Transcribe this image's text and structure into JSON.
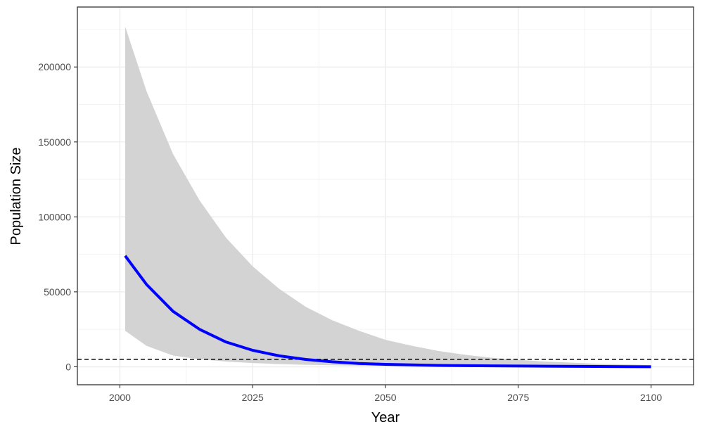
{
  "chart_data": {
    "type": "line",
    "title": "",
    "xlabel": "Year",
    "ylabel": "Population Size",
    "xlim": [
      1992,
      2108
    ],
    "ylim": [
      -12000,
      240000
    ],
    "x_ticks": [
      2000,
      2025,
      2050,
      2075,
      2100
    ],
    "x_tick_labels": [
      "2000",
      "2025",
      "2050",
      "2075",
      "2100"
    ],
    "y_ticks": [
      0,
      50000,
      100000,
      150000,
      200000
    ],
    "y_tick_labels": [
      "0",
      "50000",
      "100000",
      "150000",
      "200000"
    ],
    "grid": true,
    "series": [
      {
        "kind": "mean-line",
        "color": "#0000ff",
        "x": [
          2001,
          2005,
          2010,
          2015,
          2020,
          2025,
          2030,
          2035,
          2040,
          2045,
          2050,
          2060,
          2070,
          2080,
          2090,
          2100
        ],
        "y": [
          74000,
          55000,
          37000,
          25000,
          16500,
          11000,
          7300,
          4900,
          3300,
          2200,
          1600,
          900,
          600,
          400,
          200,
          0
        ]
      }
    ],
    "band": {
      "kind": "confidence-interval",
      "color": "#d3d3d3",
      "x": [
        2001,
        2005,
        2010,
        2015,
        2020,
        2025,
        2030,
        2035,
        2040,
        2045,
        2050,
        2055,
        2060,
        2065,
        2070,
        2075,
        2080,
        2090,
        2100
      ],
      "upper": [
        227000,
        184000,
        142000,
        111000,
        86000,
        67000,
        52000,
        40000,
        31000,
        24000,
        18000,
        14000,
        10500,
        8000,
        6000,
        4600,
        3500,
        2000,
        1200
      ],
      "lower": [
        24000,
        14000,
        7500,
        5000,
        3500,
        2500,
        1800,
        1300,
        1000,
        800,
        600,
        450,
        350,
        250,
        200,
        150,
        100,
        60,
        30
      ]
    },
    "reference_line": {
      "y": 5000,
      "style": "dashed",
      "color": "#000000"
    }
  }
}
